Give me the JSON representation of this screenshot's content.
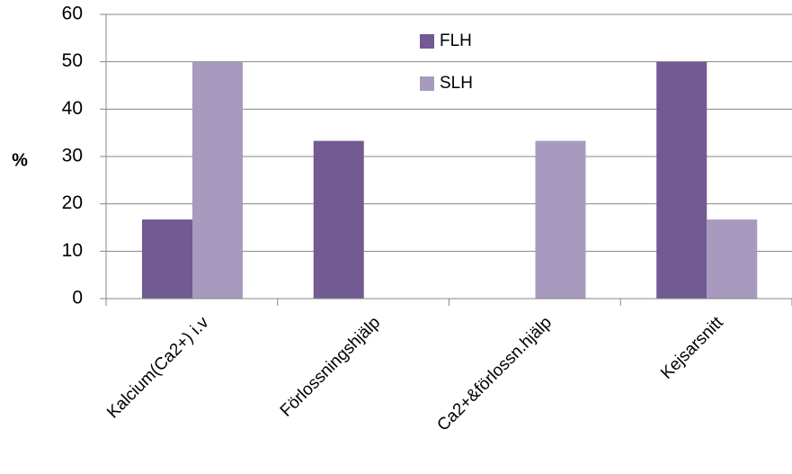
{
  "chart_data": {
    "type": "bar",
    "title": "",
    "xlabel": "",
    "ylabel": "%",
    "categories": [
      "Kalcium(Ca2+) i.v",
      "Förlossningshjälp",
      "Ca2+&förlossn.hjälp",
      "Kejsarsnitt"
    ],
    "series": [
      {
        "name": "FLH",
        "color": "#725A93",
        "values": [
          16.7,
          33.3,
          0,
          50
        ]
      },
      {
        "name": "SLH",
        "color": "#A89ABF",
        "values": [
          50,
          0,
          33.3,
          16.7
        ]
      }
    ],
    "ylim": [
      0,
      60
    ],
    "yticks": [
      "0",
      "10",
      "20",
      "30",
      "40",
      "50",
      "60"
    ],
    "grid": "horizontal",
    "legend_position": "top-right"
  }
}
